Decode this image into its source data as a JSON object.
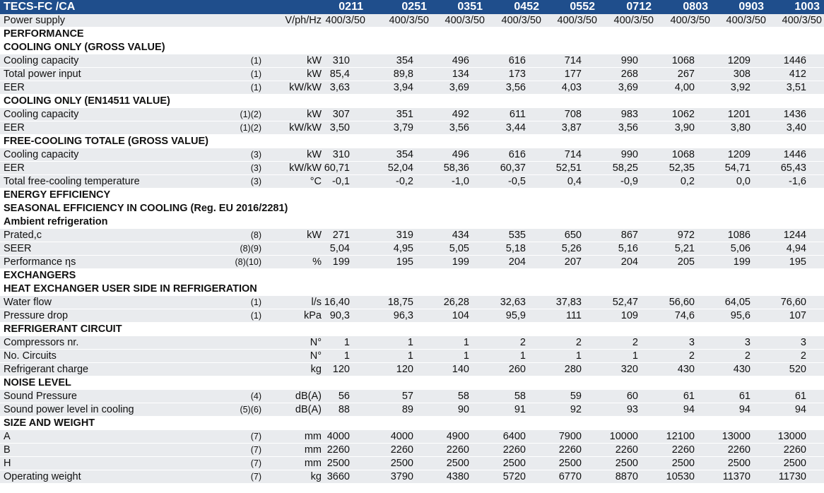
{
  "title": "TECS-FC /CA",
  "models": [
    "0211",
    "0251",
    "0351",
    "0452",
    "0552",
    "0712",
    "0803",
    "0903",
    "1003"
  ],
  "rows": [
    {
      "kind": "ps",
      "label": "Power supply",
      "note": "",
      "unit": "V/ph/Hz",
      "values": [
        "400/3/50",
        "400/3/50",
        "400/3/50",
        "400/3/50",
        "400/3/50",
        "400/3/50",
        "400/3/50",
        "400/3/50",
        "400/3/50"
      ]
    },
    {
      "kind": "sec",
      "label": "PERFORMANCE"
    },
    {
      "kind": "sec",
      "label": "COOLING ONLY (GROSS VALUE)"
    },
    {
      "kind": "data",
      "label": "Cooling capacity",
      "note": "(1)",
      "unit": "kW",
      "values": [
        "310",
        "354",
        "496",
        "616",
        "714",
        "990",
        "1068",
        "1209",
        "1446"
      ]
    },
    {
      "kind": "data",
      "label": "Total power input",
      "note": "(1)",
      "unit": "kW",
      "values": [
        "85,4",
        "89,8",
        "134",
        "173",
        "177",
        "268",
        "267",
        "308",
        "412"
      ]
    },
    {
      "kind": "data",
      "label": "EER",
      "note": "(1)",
      "unit": "kW/kW",
      "values": [
        "3,63",
        "3,94",
        "3,69",
        "3,56",
        "4,03",
        "3,69",
        "4,00",
        "3,92",
        "3,51"
      ]
    },
    {
      "kind": "sec",
      "label": "COOLING ONLY (EN14511 VALUE)"
    },
    {
      "kind": "data",
      "label": "Cooling capacity",
      "note": "(1)(2)",
      "unit": "kW",
      "values": [
        "307",
        "351",
        "492",
        "611",
        "708",
        "983",
        "1062",
        "1201",
        "1436"
      ]
    },
    {
      "kind": "data",
      "label": "EER",
      "note": "(1)(2)",
      "unit": "kW/kW",
      "values": [
        "3,50",
        "3,79",
        "3,56",
        "3,44",
        "3,87",
        "3,56",
        "3,90",
        "3,80",
        "3,40"
      ]
    },
    {
      "kind": "sec",
      "label": "FREE-COOLING TOTALE (GROSS VALUE)"
    },
    {
      "kind": "data",
      "label": "Cooling capacity",
      "note": "(3)",
      "unit": "kW",
      "values": [
        "310",
        "354",
        "496",
        "616",
        "714",
        "990",
        "1068",
        "1209",
        "1446"
      ]
    },
    {
      "kind": "data",
      "label": "EER",
      "note": "(3)",
      "unit": "kW/kW",
      "values": [
        "60,71",
        "52,04",
        "58,36",
        "60,37",
        "52,51",
        "58,25",
        "52,35",
        "54,71",
        "65,43"
      ]
    },
    {
      "kind": "data",
      "label": "Total free-cooling temperature",
      "note": "(3)",
      "unit": "°C",
      "values": [
        "-0,1",
        "-0,2",
        "-1,0",
        "-0,5",
        "0,4",
        "-0,9",
        "0,2",
        "0,0",
        "-1,6"
      ]
    },
    {
      "kind": "sec",
      "label": "ENERGY EFFICIENCY"
    },
    {
      "kind": "sec",
      "label": "SEASONAL EFFICIENCY IN COOLING (Reg. EU 2016/2281)"
    },
    {
      "kind": "sub",
      "label": "Ambient refrigeration"
    },
    {
      "kind": "data",
      "label": "Prated,c",
      "note": "(8)",
      "unit": "kW",
      "values": [
        "271",
        "319",
        "434",
        "535",
        "650",
        "867",
        "972",
        "1086",
        "1244"
      ]
    },
    {
      "kind": "data",
      "label": "SEER",
      "note": "(8)(9)",
      "unit": "",
      "values": [
        "5,04",
        "4,95",
        "5,05",
        "5,18",
        "5,26",
        "5,16",
        "5,21",
        "5,06",
        "4,94"
      ]
    },
    {
      "kind": "data",
      "label": "Performance ηs",
      "note": "(8)(10)",
      "unit": "%",
      "values": [
        "199",
        "195",
        "199",
        "204",
        "207",
        "204",
        "205",
        "199",
        "195"
      ]
    },
    {
      "kind": "sec",
      "label": "EXCHANGERS"
    },
    {
      "kind": "sec",
      "label": "HEAT EXCHANGER USER SIDE IN REFRIGERATION"
    },
    {
      "kind": "data",
      "label": "Water flow",
      "note": "(1)",
      "unit": "l/s",
      "values": [
        "16,40",
        "18,75",
        "26,28",
        "32,63",
        "37,83",
        "52,47",
        "56,60",
        "64,05",
        "76,60"
      ]
    },
    {
      "kind": "data",
      "label": "Pressure drop",
      "note": "(1)",
      "unit": "kPa",
      "values": [
        "90,3",
        "96,3",
        "104",
        "95,9",
        "111",
        "109",
        "74,6",
        "95,6",
        "107"
      ]
    },
    {
      "kind": "sec",
      "label": "REFRIGERANT CIRCUIT"
    },
    {
      "kind": "data",
      "label": "Compressors nr.",
      "note": "",
      "unit": "N°",
      "values": [
        "1",
        "1",
        "1",
        "2",
        "2",
        "2",
        "3",
        "3",
        "3"
      ]
    },
    {
      "kind": "data",
      "label": "No. Circuits",
      "note": "",
      "unit": "N°",
      "values": [
        "1",
        "1",
        "1",
        "1",
        "1",
        "1",
        "2",
        "2",
        "2"
      ]
    },
    {
      "kind": "data",
      "label": "Refrigerant charge",
      "note": "",
      "unit": "kg",
      "values": [
        "120",
        "120",
        "140",
        "260",
        "280",
        "320",
        "430",
        "430",
        "520"
      ]
    },
    {
      "kind": "sec",
      "label": "NOISE LEVEL"
    },
    {
      "kind": "data",
      "label": "Sound Pressure",
      "note": "(4)",
      "unit": "dB(A)",
      "values": [
        "56",
        "57",
        "58",
        "58",
        "59",
        "60",
        "61",
        "61",
        "61"
      ]
    },
    {
      "kind": "data",
      "label": "Sound power level in cooling",
      "note": "(5)(6)",
      "unit": "dB(A)",
      "values": [
        "88",
        "89",
        "90",
        "91",
        "92",
        "93",
        "94",
        "94",
        "94"
      ]
    },
    {
      "kind": "sec",
      "label": "SIZE AND WEIGHT"
    },
    {
      "kind": "data",
      "label": "A",
      "note": "(7)",
      "unit": "mm",
      "values": [
        "4000",
        "4000",
        "4900",
        "6400",
        "7900",
        "10000",
        "12100",
        "13000",
        "13000"
      ]
    },
    {
      "kind": "data",
      "label": "B",
      "note": "(7)",
      "unit": "mm",
      "values": [
        "2260",
        "2260",
        "2260",
        "2260",
        "2260",
        "2260",
        "2260",
        "2260",
        "2260"
      ]
    },
    {
      "kind": "data",
      "label": "H",
      "note": "(7)",
      "unit": "mm",
      "values": [
        "2500",
        "2500",
        "2500",
        "2500",
        "2500",
        "2500",
        "2500",
        "2500",
        "2500"
      ]
    },
    {
      "kind": "data",
      "label": "Operating weight",
      "note": "(7)",
      "unit": "kg",
      "values": [
        "3660",
        "3790",
        "4380",
        "5720",
        "6770",
        "8870",
        "10530",
        "11370",
        "11730"
      ]
    }
  ]
}
